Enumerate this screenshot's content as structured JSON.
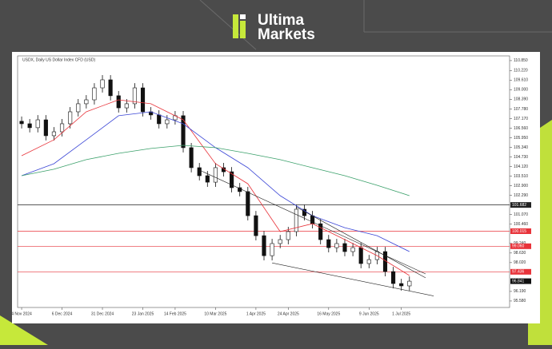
{
  "header": {
    "brand": [
      "Ultima",
      "Markets"
    ]
  },
  "chart_data": {
    "type": "candlestick",
    "title": "USDX, Daily   US Dollar Index CFD (USD)",
    "open": [
      107.0,
      106.84,
      106.59,
      107.09,
      106.08,
      106.33,
      106.84,
      107.6,
      108.11,
      108.36,
      109.12,
      109.63,
      108.62,
      107.85,
      108.11,
      109.12,
      107.6,
      107.4,
      106.84,
      107.09,
      107.35,
      105.32,
      104.05,
      103.54,
      103.13,
      104.05,
      103.79,
      102.78,
      102.53,
      101.0,
      99.73,
      98.46,
      99.23,
      99.48,
      99.99,
      101.41,
      101.0,
      100.49,
      99.48,
      98.97,
      99.23,
      98.72,
      98.97,
      97.96,
      98.21,
      98.72,
      97.45,
      96.69,
      96.54
    ],
    "high": [
      107.3,
      107.14,
      107.39,
      107.39,
      106.63,
      107.14,
      107.9,
      108.41,
      108.66,
      109.42,
      109.93,
      109.93,
      108.92,
      108.41,
      109.42,
      109.42,
      107.9,
      107.7,
      107.39,
      107.65,
      107.65,
      105.62,
      104.35,
      103.84,
      104.35,
      104.35,
      104.09,
      103.08,
      102.83,
      101.3,
      100.03,
      99.53,
      99.78,
      100.29,
      101.71,
      101.71,
      101.3,
      100.79,
      99.78,
      99.53,
      99.53,
      99.27,
      99.27,
      98.51,
      99.02,
      99.02,
      97.75,
      96.99,
      97.14
    ],
    "low": [
      106.54,
      106.29,
      106.29,
      105.78,
      105.78,
      106.03,
      106.54,
      107.3,
      107.81,
      108.06,
      108.82,
      108.32,
      107.55,
      107.55,
      107.81,
      107.3,
      107.1,
      106.54,
      106.54,
      106.79,
      105.02,
      103.75,
      103.24,
      102.83,
      102.83,
      103.49,
      102.48,
      102.23,
      100.7,
      99.43,
      98.16,
      98.16,
      98.93,
      99.18,
      99.69,
      100.7,
      100.19,
      99.18,
      98.67,
      98.67,
      98.42,
      98.42,
      97.66,
      97.66,
      97.91,
      97.15,
      96.39,
      96.24,
      96.24
    ],
    "close": [
      106.84,
      106.59,
      107.09,
      106.08,
      106.33,
      106.84,
      107.6,
      108.11,
      108.36,
      109.12,
      109.63,
      108.62,
      107.85,
      108.11,
      109.12,
      107.6,
      107.4,
      106.84,
      107.09,
      107.35,
      105.32,
      104.05,
      103.54,
      103.13,
      104.05,
      103.79,
      102.78,
      102.53,
      101.0,
      99.73,
      98.46,
      99.23,
      99.48,
      99.99,
      101.41,
      101.0,
      100.49,
      99.48,
      98.97,
      99.23,
      98.72,
      98.97,
      97.96,
      98.21,
      98.72,
      97.45,
      96.69,
      96.54,
      96.84
    ],
    "up_color": "#ffffff",
    "down_color": "#111111",
    "series": [
      {
        "color": "#e8333a",
        "x": [
          1,
          5,
          9,
          13,
          17,
          21,
          25,
          29,
          33,
          37,
          41,
          45,
          49
        ],
        "values": [
          104.81,
          105.82,
          107.6,
          108.36,
          108.11,
          107.09,
          104.3,
          103.03,
          99.99,
          100.49,
          99.48,
          98.46,
          97.2
        ]
      },
      {
        "color": "#3b46d6",
        "x": [
          1,
          5,
          9,
          13,
          17,
          21,
          25,
          29,
          33,
          37,
          41,
          45,
          49
        ],
        "values": [
          103.54,
          104.3,
          105.82,
          107.35,
          107.6,
          106.84,
          105.32,
          104.05,
          102.27,
          101.0,
          100.24,
          99.73,
          98.72
        ]
      },
      {
        "color": "#3aa06a",
        "x": [
          1,
          5,
          9,
          13,
          17,
          21,
          25,
          29,
          33,
          37,
          41,
          45,
          49
        ],
        "values": [
          103.54,
          103.95,
          104.56,
          104.96,
          105.27,
          105.47,
          105.32,
          104.96,
          104.56,
          104.05,
          103.54,
          102.93,
          102.27
        ]
      }
    ],
    "trendlines": [
      {
        "color": "#222222",
        "x": [
          35,
          51
        ],
        "values": [
          101.55,
          97.05
        ]
      },
      {
        "color": "#222222",
        "x": [
          32,
          52
        ],
        "values": [
          98.0,
          95.9
        ]
      },
      {
        "color": "#222222",
        "x": [
          23,
          51
        ],
        "values": [
          103.9,
          97.3
        ]
      }
    ],
    "levels": [
      {
        "value": 101.682,
        "label": "101.682",
        "color": "#222222"
      },
      {
        "value": 100.015,
        "label": "100.015",
        "color": "#e8333a"
      },
      {
        "value": 99.06,
        "label": "99.060",
        "color": "#e8333a"
      },
      {
        "value": 97.436,
        "label": "97.436",
        "color": "#e8333a"
      }
    ],
    "last_price": {
      "value": 96.84,
      "label": "96.841"
    },
    "xlim": [
      0.5,
      61.4
    ],
    "ylim": [
      95.17,
      111.15
    ],
    "xticks": [
      {
        "value": 1,
        "label": "4 Nov 2024"
      },
      {
        "value": 6,
        "label": "6 Dec 2024"
      },
      {
        "value": 11,
        "label": "31 Dec 2024"
      },
      {
        "value": 16,
        "label": "23 Jan 2025"
      },
      {
        "value": 20,
        "label": "14 Feb 2025"
      },
      {
        "value": 25,
        "label": "10 Mar 2025"
      },
      {
        "value": 30,
        "label": "1 Apr 2025"
      },
      {
        "value": 34,
        "label": "24 Apr 2025"
      },
      {
        "value": 39,
        "label": "16 May 2025"
      },
      {
        "value": 44,
        "label": "9 Jun 2025"
      },
      {
        "value": 48,
        "label": "1 Jul 2025"
      }
    ],
    "yticks": [
      {
        "value": 110.85,
        "label": "110.850"
      },
      {
        "value": 110.22,
        "label": "110.220"
      },
      {
        "value": 109.61,
        "label": "109.610"
      },
      {
        "value": 109,
        "label": "109.000"
      },
      {
        "value": 108.39,
        "label": "108.390"
      },
      {
        "value": 107.78,
        "label": "107.780"
      },
      {
        "value": 107.17,
        "label": "107.170"
      },
      {
        "value": 106.56,
        "label": "106.560"
      },
      {
        "value": 105.95,
        "label": "105.950"
      },
      {
        "value": 105.34,
        "label": "105.340"
      },
      {
        "value": 104.73,
        "label": "104.730"
      },
      {
        "value": 104.12,
        "label": "104.120"
      },
      {
        "value": 103.51,
        "label": "103.510"
      },
      {
        "value": 102.9,
        "label": "102.900"
      },
      {
        "value": 102.29,
        "label": "102.290"
      },
      {
        "value": 101.07,
        "label": "101.070"
      },
      {
        "value": 100.46,
        "label": "100.460"
      },
      {
        "value": 99.24,
        "label": "99.240"
      },
      {
        "value": 98.63,
        "label": "98.630"
      },
      {
        "value": 98.02,
        "label": "98.020"
      },
      {
        "value": 96.19,
        "label": "96.190"
      },
      {
        "value": 95.58,
        "label": "95.580"
      }
    ]
  }
}
